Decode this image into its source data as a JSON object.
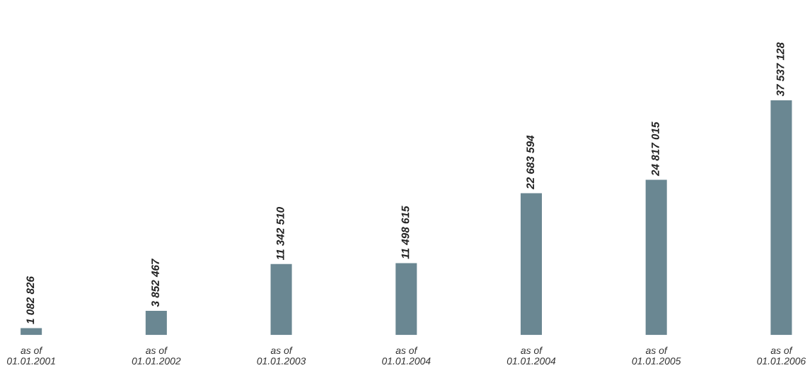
{
  "chart_data": {
    "type": "bar",
    "categories": [
      "as of\n01.01.2001",
      "as of\n01.01.2002",
      "as of\n01.01.2003",
      "as of\n01.01.2004",
      "as of\n01.01.2004",
      "as of\n01.01.2005",
      "as of\n01.01.2006"
    ],
    "values": [
      1082826,
      3852467,
      11342510,
      11498615,
      22683594,
      24817015,
      37537128
    ],
    "value_labels": [
      "1 082 826",
      "3 852 467",
      "11 342 510",
      "11 498 615",
      "22 683 594",
      "24 817 015",
      "37 537 128"
    ],
    "color": "#6a8792",
    "grid": false,
    "legend": false
  }
}
